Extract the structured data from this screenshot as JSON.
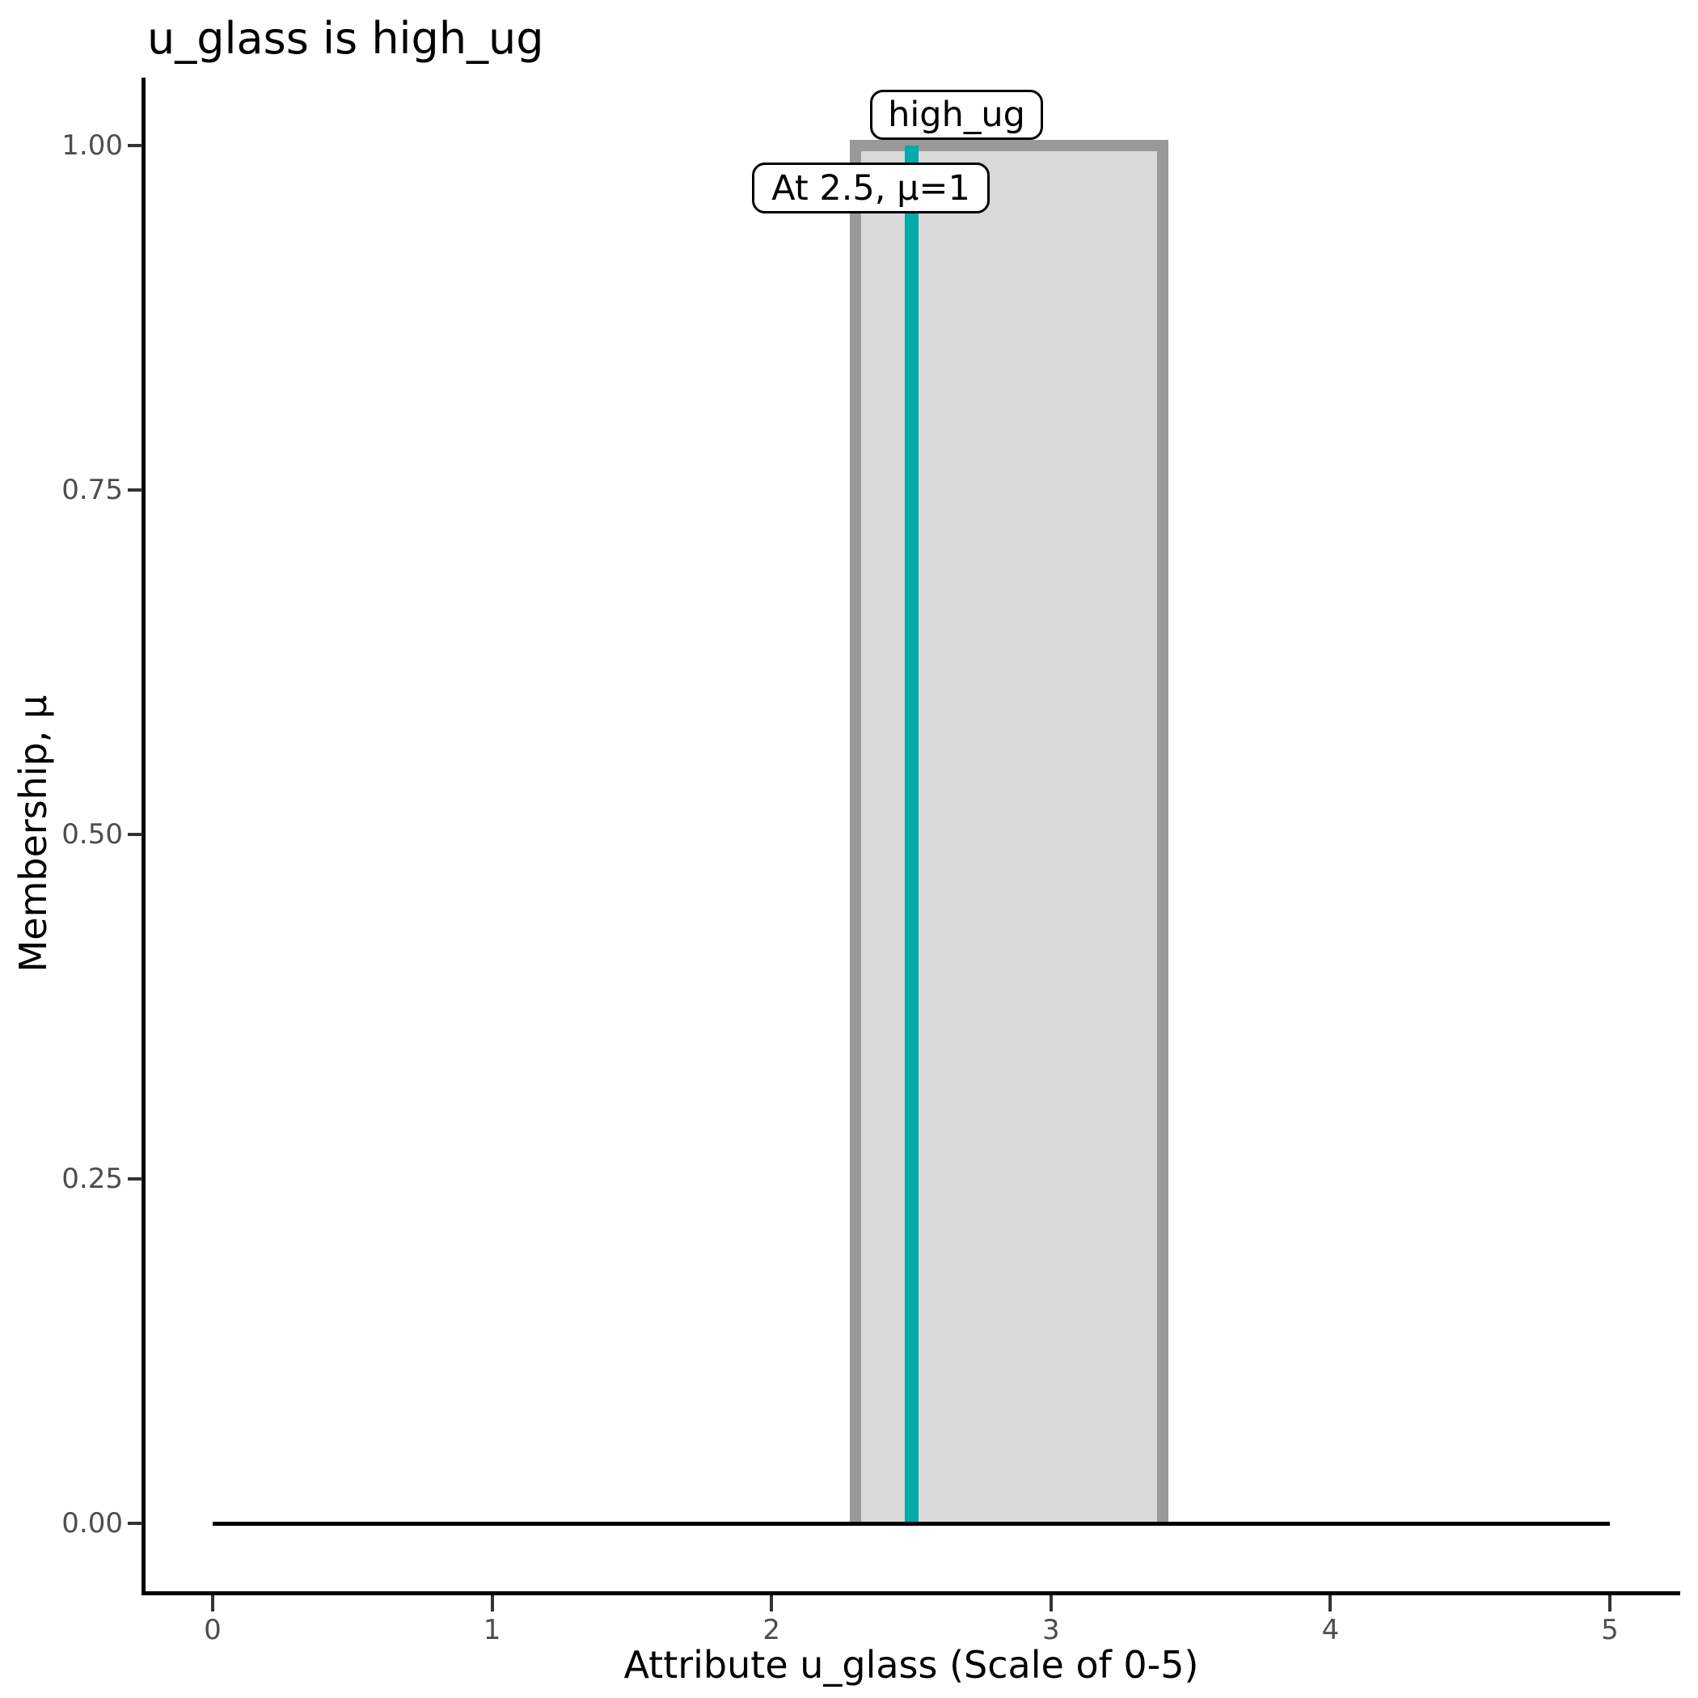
{
  "chart_data": {
    "type": "area",
    "title": "u_glass is high_ug",
    "xlabel": "Attribute u_glass (Scale of 0-5)",
    "ylabel": "Membership, μ",
    "xlim": [
      0,
      5
    ],
    "ylim": [
      0,
      1
    ],
    "grid": false,
    "legend": false,
    "x_ticks": [
      {
        "value": 0,
        "label": "0"
      },
      {
        "value": 1,
        "label": "1"
      },
      {
        "value": 2,
        "label": "2"
      },
      {
        "value": 3,
        "label": "3"
      },
      {
        "value": 4,
        "label": "4"
      },
      {
        "value": 5,
        "label": "5"
      }
    ],
    "y_ticks": [
      {
        "value": 0.0,
        "label": "0.00"
      },
      {
        "value": 0.25,
        "label": "0.25"
      },
      {
        "value": 0.5,
        "label": "0.50"
      },
      {
        "value": 0.75,
        "label": "0.75"
      },
      {
        "value": 1.0,
        "label": "1.00"
      }
    ],
    "set_label": "high_ug",
    "membership_function": {
      "name": "high_ug",
      "shape": "rectangle",
      "x_start": 2.3,
      "x_end": 3.4,
      "mu_inside": 1,
      "mu_outside": 0,
      "points": [
        [
          0,
          0
        ],
        [
          2.3,
          0
        ],
        [
          2.3,
          1
        ],
        [
          3.4,
          1
        ],
        [
          3.4,
          0
        ],
        [
          5,
          0
        ]
      ]
    },
    "baseline": {
      "x_start": 0,
      "x_end": 5,
      "mu": 0
    },
    "marker": {
      "x": 2.5,
      "mu": 1,
      "label": "At 2.5, μ=1"
    }
  },
  "colors": {
    "set_fill": "#d9d9d9",
    "set_outline": "#999999",
    "marker_line": "#00aba9",
    "axis_line": "#000000",
    "tick_mark": "#333333",
    "tick_label": "#4d4d4d",
    "text": "#000000",
    "background": "#ffffff"
  }
}
